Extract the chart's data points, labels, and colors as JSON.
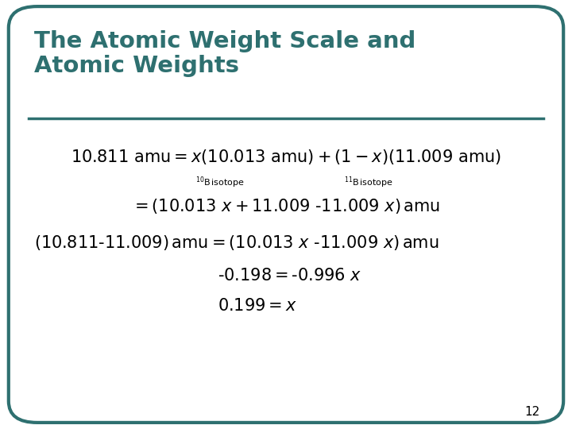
{
  "title_line1": "The Atomic Weight Scale and",
  "title_line2": "Atomic Weights",
  "title_color": "#2e7070",
  "bg_color": "#ffffff",
  "border_color": "#2e7070",
  "slide_number": "12",
  "figsize": [
    7.2,
    5.4
  ],
  "dpi": 100
}
